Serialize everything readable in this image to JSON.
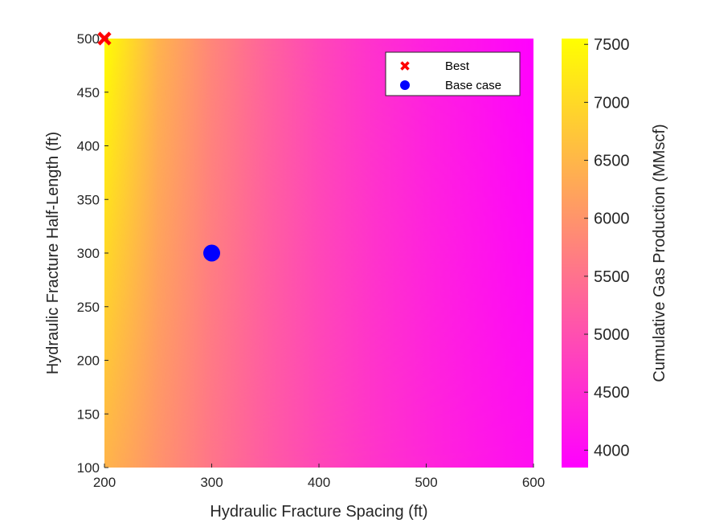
{
  "chart_data": {
    "type": "heatmap",
    "title": "",
    "xlabel": "Hydraulic Fracture Spacing (ft)",
    "ylabel": "Hydraulic Fracture Half-Length (ft)",
    "xlim": [
      200,
      600
    ],
    "ylim": [
      100,
      500
    ],
    "x_ticks": [
      "200",
      "300",
      "400",
      "500",
      "600"
    ],
    "y_ticks": [
      "100",
      "150",
      "200",
      "250",
      "300",
      "350",
      "400",
      "450",
      "500"
    ],
    "colorbar": {
      "label": "Cumulative Gas Production (MMscf)",
      "range": [
        3850,
        7550
      ],
      "ticks": [
        "4000",
        "4500",
        "5000",
        "5500",
        "6000",
        "6500",
        "7000",
        "7500"
      ],
      "colormap": "spring",
      "color_low": "#ff00ff",
      "color_high": "#ffff00"
    },
    "surface": {
      "x": [
        200,
        250,
        300,
        350,
        400,
        450,
        500,
        550,
        600
      ],
      "values_y100": [
        6480,
        5980,
        5550,
        5180,
        4880,
        4620,
        4400,
        4210,
        4050
      ],
      "values_y500": [
        7520,
        6440,
        5800,
        5300,
        4900,
        4580,
        4320,
        4110,
        3870
      ]
    },
    "series": [
      {
        "name": "Best",
        "x": 200,
        "y": 500,
        "marker": "x",
        "color": "#ff0000"
      },
      {
        "name": "Base case",
        "x": 300,
        "y": 300,
        "marker": "circle",
        "color": "#0000ff"
      }
    ],
    "legend": {
      "position": "top-right",
      "entries": [
        "Best",
        "Base case"
      ]
    },
    "grid": false
  }
}
